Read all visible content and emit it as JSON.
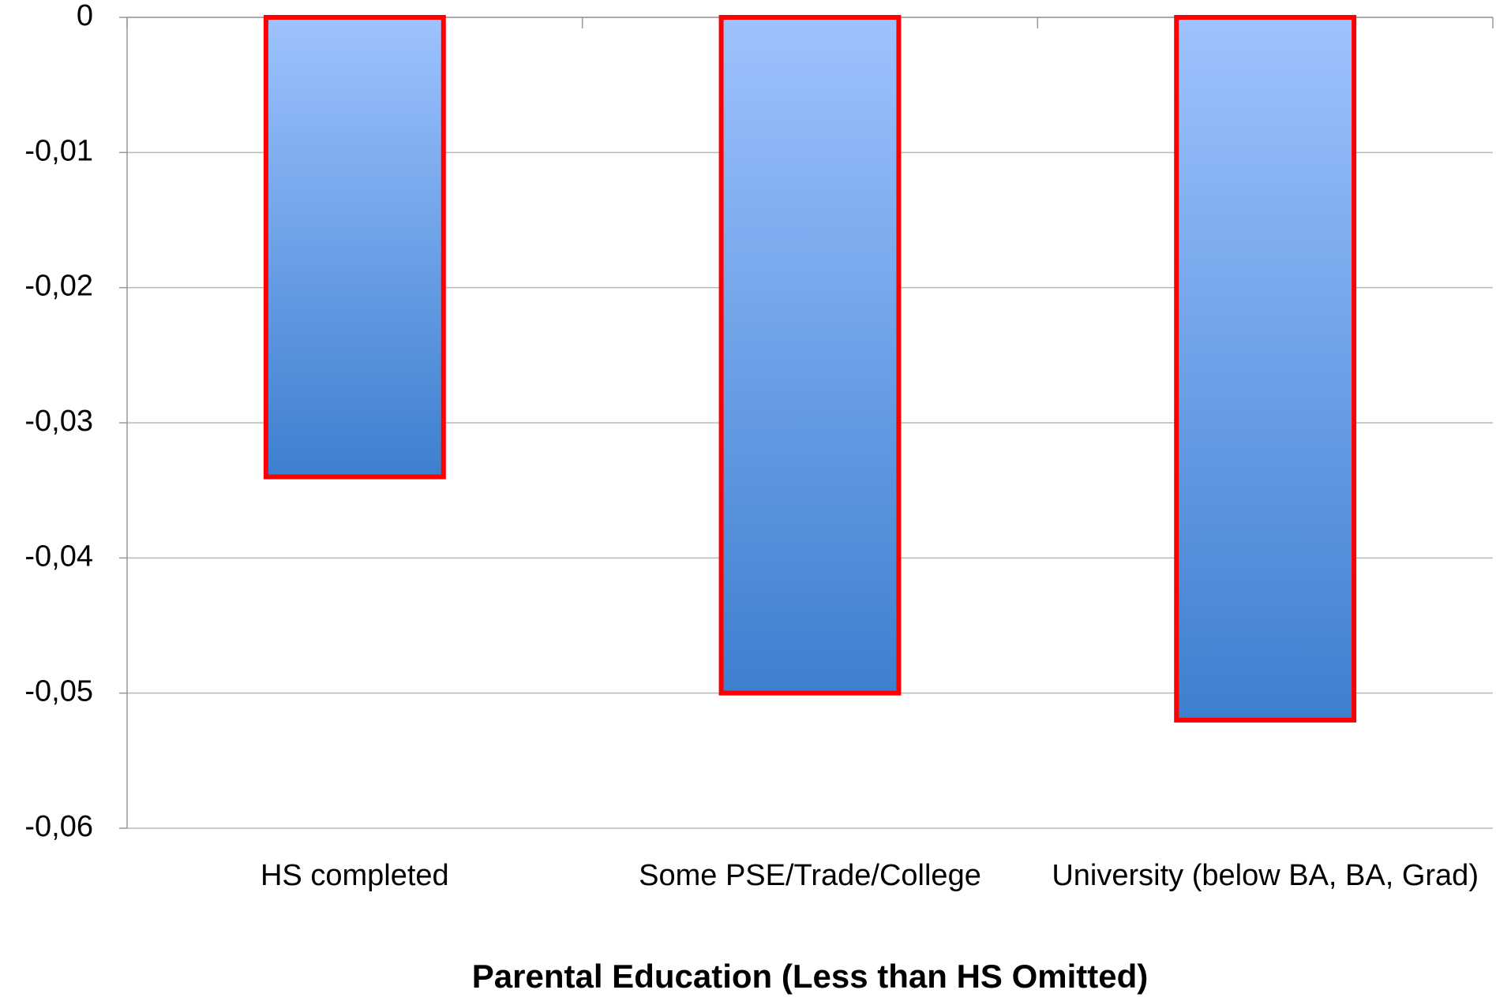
{
  "chart_data": {
    "type": "bar",
    "x_label": "Parental Education (Less than HS Omitted)",
    "categories": [
      "HS completed",
      "Some PSE/Trade/College",
      "University (below BA, BA, Grad)"
    ],
    "values": [
      -0.034,
      -0.05,
      -0.052
    ],
    "color": "#ff0000",
    "ylim": [
      -0.06,
      0
    ],
    "yticks": [
      0,
      {
        "value": -0.01,
        "label": "-0,01"
      },
      {
        "value": -0.02,
        "label": "-0,02"
      },
      {
        "value": -0.03,
        "label": "-0,03"
      },
      {
        "value": -0.04,
        "label": "-0,04"
      },
      {
        "value": -0.05,
        "label": "-0,05"
      },
      {
        "value": -0.06,
        "label": "-0,06"
      }
    ],
    "grid": true
  }
}
